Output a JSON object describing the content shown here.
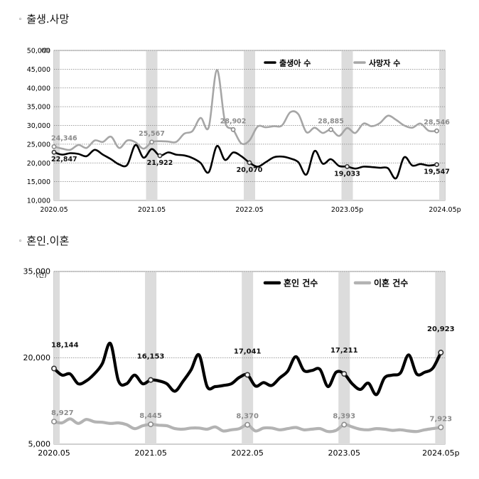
{
  "sections": [
    {
      "title": "출생.사망"
    },
    {
      "title": "혼인.이혼"
    }
  ],
  "chart_data": [
    {
      "type": "line",
      "unit_label": "(명)",
      "ylim": [
        10000,
        50000
      ],
      "y_ticks": [
        "10,000",
        "15,000",
        "20,000",
        "25,000",
        "30,000",
        "35,000",
        "40,000",
        "45,000",
        "50,000"
      ],
      "x_tick_labels": [
        "2020.05",
        "2021.05",
        "2022.05",
        "2023.05p",
        "2024.05p"
      ],
      "x_tick_positions": [
        0,
        12,
        24,
        36,
        48
      ],
      "shaded_months": [
        0,
        12,
        24,
        36,
        48
      ],
      "series": [
        {
          "name": "출생아 수",
          "color": "#000000",
          "values": [
            22847,
            22200,
            22600,
            22400,
            21800,
            23500,
            22200,
            21000,
            19600,
            19500,
            24800,
            21400,
            23700,
            21922,
            22800,
            22200,
            22000,
            21300,
            20000,
            17500,
            24500,
            20800,
            22800,
            21800,
            20070,
            19000,
            20200,
            21500,
            21700,
            21200,
            20200,
            16900,
            23200,
            19800,
            21000,
            19200,
            19033,
            18500,
            19000,
            18900,
            18700,
            18600,
            15900,
            21500,
            19300,
            19700,
            19300,
            19547
          ],
          "labels": [
            {
              "i": 0,
              "text": "22,847"
            },
            {
              "i": 13,
              "text": "21,922"
            },
            {
              "i": 24,
              "text": "20,070"
            },
            {
              "i": 36,
              "text": "19,033"
            },
            {
              "i": 47,
              "text": "19,547"
            }
          ]
        },
        {
          "name": "사망자 수",
          "color": "#a6a6a6",
          "values": [
            24346,
            23800,
            23500,
            24800,
            24000,
            26000,
            25600,
            27000,
            24000,
            26000,
            25500,
            23800,
            25567,
            25800,
            25700,
            25600,
            27800,
            28500,
            32000,
            29500,
            44800,
            31000,
            28902,
            25200,
            26000,
            29700,
            29500,
            29800,
            30000,
            33500,
            33000,
            28200,
            29400,
            28000,
            28885,
            27200,
            29300,
            28000,
            30500,
            29800,
            30600,
            32600,
            31500,
            30000,
            29400,
            30500,
            28600,
            28546
          ],
          "labels": [
            {
              "i": 0,
              "text": "24,346"
            },
            {
              "i": 12,
              "text": "25,567"
            },
            {
              "i": 22,
              "text": "28,902"
            },
            {
              "i": 34,
              "text": "28,885"
            },
            {
              "i": 47,
              "text": "28,546"
            }
          ]
        }
      ]
    },
    {
      "type": "line",
      "unit_label": "(건)",
      "ylim": [
        5000,
        35000
      ],
      "y_ticks": [
        "5,000",
        "20,000",
        "35,000"
      ],
      "y_tick_values": [
        5000,
        20000,
        35000
      ],
      "x_tick_labels": [
        "2020.05",
        "2021.05",
        "2022.05",
        "2023.05",
        "2024.05p"
      ],
      "x_tick_positions": [
        0,
        12,
        24,
        36,
        48
      ],
      "shaded_months": [
        0,
        12,
        24,
        36,
        48
      ],
      "series": [
        {
          "name": "혼인 건수",
          "color": "#000000",
          "values": [
            18144,
            17000,
            17200,
            15500,
            16000,
            17200,
            19000,
            22500,
            16000,
            15500,
            17000,
            15500,
            16153,
            16000,
            15500,
            14200,
            15900,
            17900,
            20500,
            15000,
            15000,
            15200,
            15500,
            16600,
            17041,
            15100,
            15700,
            15200,
            16500,
            17700,
            20200,
            17800,
            17800,
            18000,
            15000,
            17500,
            17211,
            15500,
            14500,
            15600,
            13600,
            16500,
            17000,
            17400,
            20500,
            17200,
            17500,
            18200,
            20923
          ],
          "labels": [
            {
              "i": 0,
              "text": "18,144"
            },
            {
              "i": 12,
              "text": "16,153"
            },
            {
              "i": 24,
              "text": "17,041"
            },
            {
              "i": 36,
              "text": "17,211"
            },
            {
              "i": 48,
              "text": "20,923"
            }
          ]
        },
        {
          "name": "이혼 건수",
          "color": "#b3b3b3",
          "values": [
            8927,
            8700,
            9400,
            8600,
            9300,
            8900,
            8800,
            8600,
            8700,
            8400,
            7700,
            8200,
            8445,
            8300,
            8200,
            7700,
            7600,
            7800,
            7800,
            7600,
            8000,
            7300,
            7500,
            7700,
            8370,
            7300,
            7800,
            7800,
            7500,
            7700,
            7900,
            7500,
            7600,
            7700,
            7200,
            7400,
            8393,
            8000,
            7600,
            7500,
            7700,
            7600,
            7400,
            7500,
            7300,
            7200,
            7500,
            7700,
            7923
          ],
          "labels": [
            {
              "i": 0,
              "text": "8,927"
            },
            {
              "i": 12,
              "text": "8,445"
            },
            {
              "i": 24,
              "text": "8,370"
            },
            {
              "i": 36,
              "text": "8,393"
            },
            {
              "i": 48,
              "text": "7,923"
            }
          ]
        }
      ]
    }
  ]
}
